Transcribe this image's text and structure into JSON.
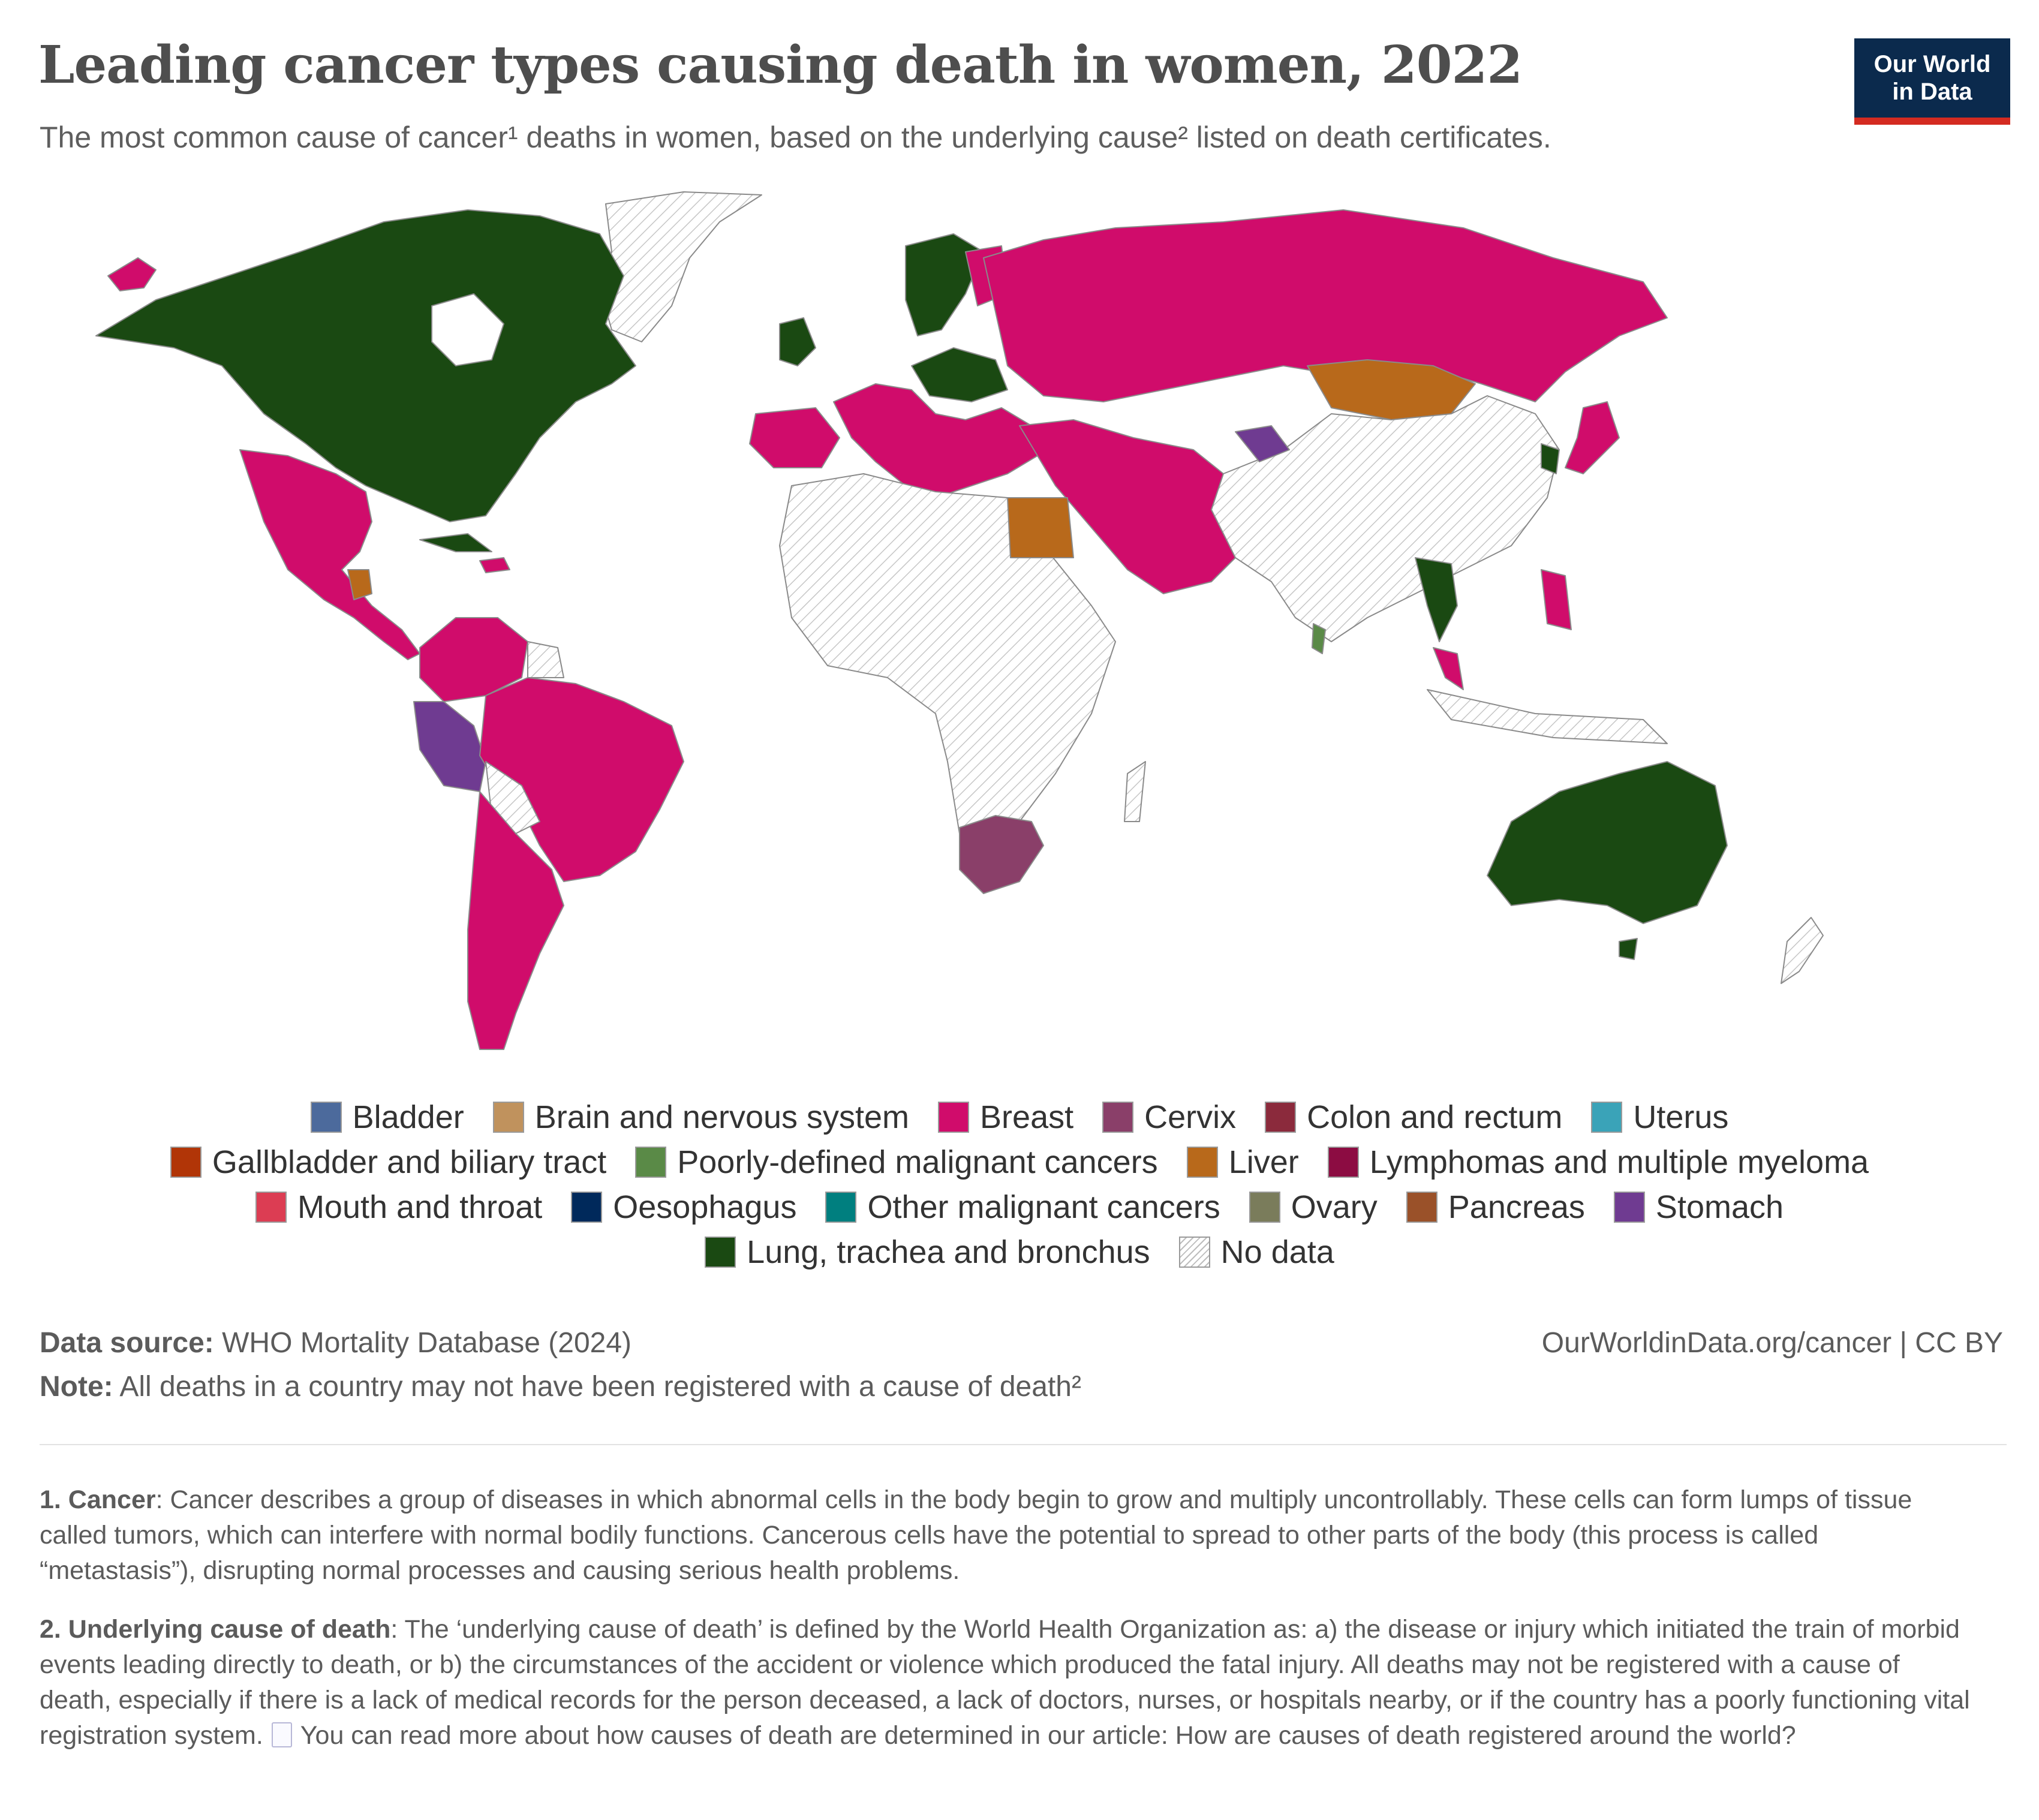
{
  "header": {
    "title": "Leading cancer types causing death in women, 2022",
    "subtitle": "The most common cause of cancer¹ deaths in women, based on the underlying cause² listed on death certificates."
  },
  "logo": {
    "line1": "Our World",
    "line2": "in Data",
    "bg_color": "#0b2a4d",
    "accent_color": "#d42b21"
  },
  "map": {
    "no_data_color": "#e8e8e8",
    "categories": {
      "breast": "#d00c6b",
      "lung": "#1a4912",
      "liver": "#b8691b",
      "cervix": "#8a3f69",
      "stomach": "#6f3b91",
      "poorly_defined": "#5a8a47",
      "no_data": "#e8e8e8"
    }
  },
  "legend": {
    "rows": [
      [
        {
          "label": "Bladder",
          "color": "#4c6a9c"
        },
        {
          "label": "Brain and nervous system",
          "color": "#c0925d"
        },
        {
          "label": "Breast",
          "color": "#d00c6b"
        },
        {
          "label": "Cervix",
          "color": "#8a3f69"
        },
        {
          "label": "Colon and rectum",
          "color": "#8b2a3c"
        },
        {
          "label": "Uterus",
          "color": "#3aa3b8"
        }
      ],
      [
        {
          "label": "Gallbladder and biliary tract",
          "color": "#b13507"
        },
        {
          "label": "Poorly-defined malignant cancers",
          "color": "#5a8a47"
        },
        {
          "label": "Liver",
          "color": "#b8691b"
        },
        {
          "label": "Lymphomas and multiple myeloma",
          "color": "#8c0c42"
        }
      ],
      [
        {
          "label": "Mouth and throat",
          "color": "#dc3d53"
        },
        {
          "label": "Oesophagus",
          "color": "#00295b"
        },
        {
          "label": "Other malignant cancers",
          "color": "#007f7f"
        },
        {
          "label": "Ovary",
          "color": "#7a7c5b"
        },
        {
          "label": "Pancreas",
          "color": "#9a5129"
        },
        {
          "label": "Stomach",
          "color": "#6f3b91"
        }
      ],
      [
        {
          "label": "Lung, trachea and bronchus",
          "color": "#1a4912"
        },
        {
          "label": "No data",
          "color": "nodata"
        }
      ]
    ]
  },
  "footer": {
    "source_key": "Data source:",
    "source_value": "WHO Mortality Database (2024)",
    "note_key": "Note:",
    "note_value": "All deaths in a country may not have been registered with a cause of death²",
    "url": "OurWorldinData.org/cancer | CC BY"
  },
  "footnotes": {
    "fn1_key": "1. Cancer",
    "fn1_text": ": Cancer describes a group of diseases in which abnormal cells in the body begin to grow and multiply uncontrollably. These cells can form lumps of tissue called tumors, which can interfere with normal bodily functions. Cancerous cells have the potential to spread to other parts of the body (this process is called “metastasis”), disrupting normal processes and causing serious health problems.",
    "fn2_key": "2. Underlying cause of death",
    "fn2_text": ": The ‘underlying cause of death’ is defined by the World Health Organization as: a) the disease or injury which initiated the train of morbid events leading directly to death, or b) the circumstances of the accident or violence which produced the fatal injury. All deaths may not be registered with a cause of death, especially if there is a lack of medical records for the person deceased, a lack of doctors, nurses, or hospitals nearby, or if the country has a poorly functioning vital registration system.",
    "fn2_link_text": "You can read more about how causes of death are determined in our article: How are causes of death registered around the world?"
  }
}
